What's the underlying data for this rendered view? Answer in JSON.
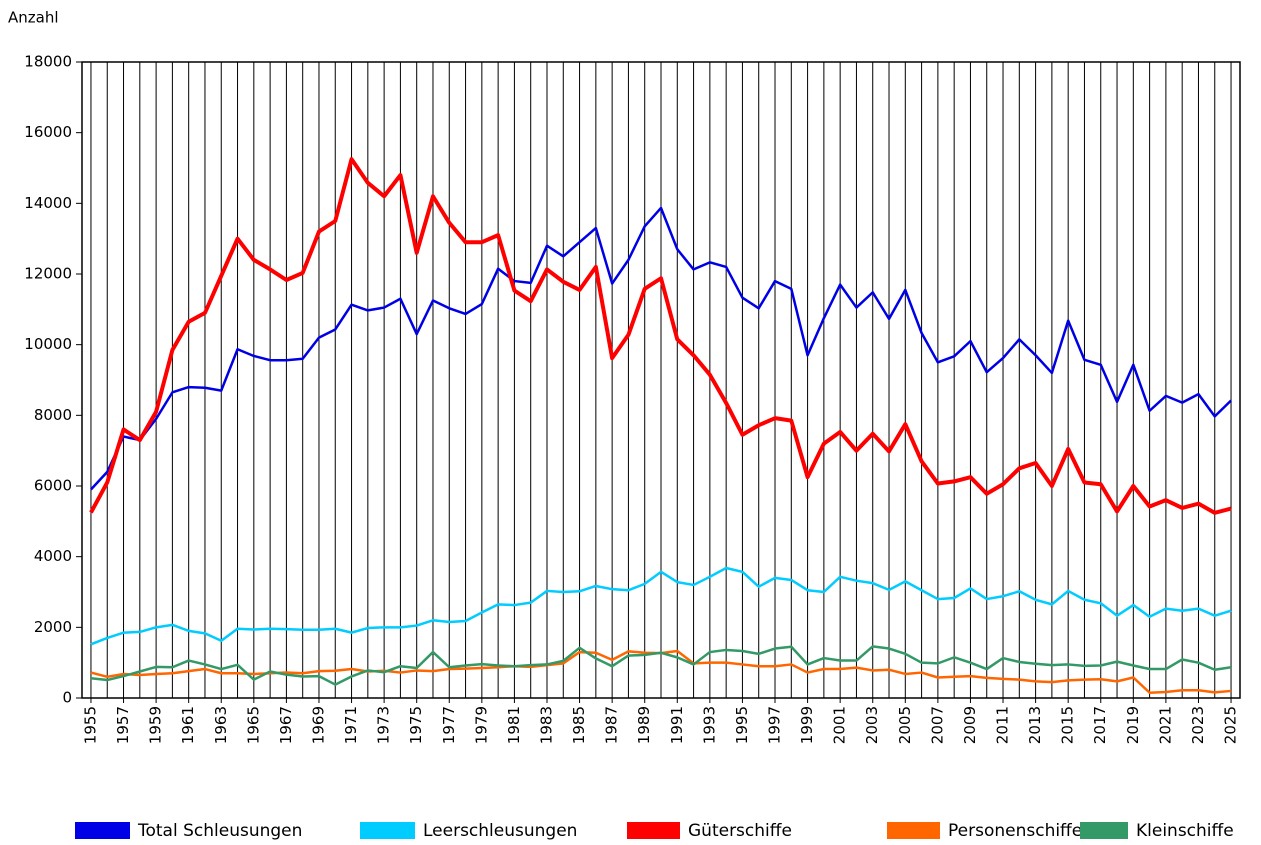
{
  "chart_data": {
    "type": "line",
    "y_label": "Anzahl",
    "x": [
      1955,
      1956,
      1957,
      1958,
      1959,
      1960,
      1961,
      1962,
      1963,
      1964,
      1965,
      1966,
      1967,
      1968,
      1969,
      1970,
      1971,
      1972,
      1973,
      1974,
      1975,
      1976,
      1977,
      1978,
      1979,
      1980,
      1981,
      1982,
      1983,
      1984,
      1985,
      1986,
      1987,
      1988,
      1989,
      1990,
      1991,
      1992,
      1993,
      1994,
      1995,
      1996,
      1997,
      1998,
      1999,
      2000,
      2001,
      2002,
      2003,
      2004,
      2005,
      2006,
      2007,
      2008,
      2009,
      2010,
      2011,
      2012,
      2013,
      2014,
      2015,
      2016,
      2017,
      2018,
      2019,
      2020,
      2021,
      2022,
      2023,
      2024,
      2025
    ],
    "xlim": [
      1954.45,
      2025.55
    ],
    "xticks": [
      1955,
      1957,
      1959,
      1961,
      1963,
      1965,
      1967,
      1969,
      1971,
      1973,
      1975,
      1977,
      1979,
      1981,
      1983,
      1985,
      1987,
      1989,
      1991,
      1993,
      1995,
      1997,
      1999,
      2001,
      2003,
      2005,
      2007,
      2009,
      2011,
      2013,
      2015,
      2017,
      2019,
      2021,
      2023,
      2025
    ],
    "ylim": [
      0,
      18000
    ],
    "yticks": [
      0,
      2000,
      4000,
      6000,
      8000,
      10000,
      12000,
      14000,
      16000,
      18000
    ],
    "grid": true,
    "legend": "bottom",
    "series": [
      {
        "name": "Total Schleusungen",
        "color": "#0000e6",
        "values": [
          5900,
          6400,
          7400,
          7300,
          7900,
          8650,
          8800,
          8780,
          8700,
          9870,
          9680,
          9560,
          9560,
          9600,
          10200,
          10430,
          11130,
          10970,
          11050,
          11300,
          10300,
          11250,
          11030,
          10870,
          11150,
          12150,
          11800,
          11750,
          12800,
          12500,
          12900,
          13300,
          11730,
          12400,
          13350,
          13870,
          12700,
          12130,
          12330,
          12200,
          11330,
          11030,
          11800,
          11580,
          9700,
          10750,
          11700,
          11050,
          11480,
          10730,
          11550,
          10330,
          9500,
          9670,
          10100,
          9220,
          9620,
          10150,
          9700,
          9200,
          10680,
          9570,
          9430,
          8380,
          9430,
          8130,
          8550,
          8360,
          8600,
          7970,
          8420
        ]
      },
      {
        "name": "Leerschleusungen",
        "color": "#00ccff",
        "values": [
          1520,
          1700,
          1850,
          1870,
          2000,
          2070,
          1900,
          1830,
          1620,
          1960,
          1940,
          1960,
          1950,
          1930,
          1930,
          1960,
          1850,
          1980,
          2000,
          2000,
          2050,
          2200,
          2150,
          2180,
          2420,
          2650,
          2630,
          2700,
          3030,
          3000,
          3020,
          3170,
          3080,
          3050,
          3230,
          3570,
          3280,
          3200,
          3430,
          3680,
          3570,
          3150,
          3400,
          3340,
          3050,
          3000,
          3430,
          3320,
          3250,
          3060,
          3300,
          3050,
          2800,
          2830,
          3100,
          2800,
          2880,
          3020,
          2780,
          2650,
          3030,
          2780,
          2680,
          2330,
          2630,
          2300,
          2530,
          2470,
          2530,
          2330,
          2470
        ]
      },
      {
        "name": "Güterschiffe",
        "color": "#ff0000",
        "values": [
          5250,
          6100,
          7600,
          7300,
          8100,
          9850,
          10650,
          10900,
          11950,
          13000,
          12400,
          12130,
          11830,
          12030,
          13200,
          13500,
          15250,
          14580,
          14200,
          14800,
          12600,
          14200,
          13450,
          12900,
          12900,
          13100,
          11530,
          11230,
          12130,
          11780,
          11550,
          12200,
          9620,
          10280,
          11580,
          11880,
          10150,
          9700,
          9150,
          8350,
          7450,
          7720,
          7920,
          7850,
          6250,
          7200,
          7530,
          7000,
          7480,
          6980,
          7750,
          6700,
          6070,
          6130,
          6250,
          5780,
          6050,
          6500,
          6650,
          6000,
          7050,
          6100,
          6050,
          5280,
          6000,
          5420,
          5600,
          5380,
          5500,
          5240,
          5360
        ]
      },
      {
        "name": "Personenschiffe",
        "color": "#ff6600",
        "values": [
          720,
          600,
          680,
          650,
          680,
          700,
          760,
          820,
          700,
          700,
          680,
          700,
          720,
          700,
          760,
          770,
          820,
          750,
          770,
          720,
          780,
          760,
          820,
          830,
          850,
          870,
          900,
          880,
          930,
          980,
          1300,
          1280,
          1080,
          1320,
          1280,
          1270,
          1330,
          980,
          1000,
          1000,
          950,
          900,
          900,
          950,
          720,
          820,
          820,
          860,
          780,
          800,
          680,
          720,
          580,
          600,
          620,
          570,
          540,
          520,
          470,
          450,
          500,
          520,
          530,
          470,
          580,
          150,
          170,
          220,
          220,
          160,
          200
        ]
      },
      {
        "name": "Kleinschiffe",
        "color": "#339966",
        "values": [
          560,
          510,
          620,
          750,
          880,
          870,
          1060,
          950,
          820,
          940,
          520,
          750,
          660,
          610,
          620,
          380,
          610,
          780,
          730,
          900,
          850,
          1300,
          870,
          920,
          960,
          920,
          900,
          930,
          950,
          1050,
          1420,
          1120,
          900,
          1200,
          1220,
          1280,
          1150,
          950,
          1300,
          1360,
          1330,
          1250,
          1400,
          1450,
          950,
          1130,
          1060,
          1060,
          1460,
          1400,
          1250,
          1000,
          980,
          1150,
          1000,
          820,
          1130,
          1020,
          970,
          930,
          950,
          910,
          920,
          1030,
          920,
          820,
          820,
          1090,
          1000,
          800,
          870
        ]
      }
    ]
  }
}
